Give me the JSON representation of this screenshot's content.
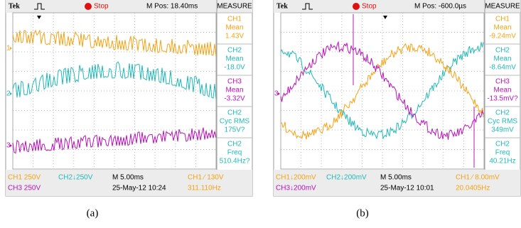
{
  "panels": [
    {
      "top": {
        "brand": "Tek",
        "status": "Stop",
        "mpos": "M Pos: 18.40ms",
        "measure_title": "MEASURE"
      },
      "measurements": [
        {
          "channel": "CH1",
          "label": "Mean",
          "value": "1.43V"
        },
        {
          "channel": "CH2",
          "label": "Mean",
          "value": "-18.0V"
        },
        {
          "channel": "CH3",
          "label": "Mean",
          "value": "-3.32V"
        },
        {
          "channel": "CH2",
          "label": "Cyc RMS",
          "value": "175V?"
        },
        {
          "channel": "CH2",
          "label": "Freq",
          "value": "510.4Hz?"
        }
      ],
      "channel_markers": [
        "1",
        "2",
        "3"
      ],
      "footer": {
        "ch1_scale": "CH1  250V",
        "ch2_scale": "CH2↓250V",
        "timebase": "M 5.00ms",
        "trigger": "CH1 ⁄ 130V",
        "ch3_scale": "CH3  250V",
        "date": "25-May-12 10:24",
        "freq": "311.110Hz"
      }
    },
    {
      "top": {
        "brand": "Tek",
        "status": "Stop",
        "mpos": "M Pos: -600.0µs",
        "measure_title": "MEASURE"
      },
      "measurements": [
        {
          "channel": "CH1",
          "label": "Mean",
          "value": "-9.24mV"
        },
        {
          "channel": "CH2",
          "label": "Mean",
          "value": "-8.64mV"
        },
        {
          "channel": "CH3",
          "label": "Mean",
          "value": "-13.5mV?"
        },
        {
          "channel": "CH2",
          "label": "Cyc RMS",
          "value": "349mV"
        },
        {
          "channel": "CH2",
          "label": "Freq",
          "value": "40.21Hz"
        }
      ],
      "channel_markers": [
        "3"
      ],
      "footer": {
        "ch1_scale": "CH1↓200mV",
        "ch2_scale": "CH2↓200mV",
        "timebase": "M 5.00ms",
        "trigger": "CH1 ⁄ 8.00mV",
        "ch3_scale": "CH3↓200mV",
        "date": "25-May-12 10:01",
        "freq": "20.0405Hz"
      }
    }
  ],
  "captions": [
    "(a)",
    "(b)"
  ]
}
